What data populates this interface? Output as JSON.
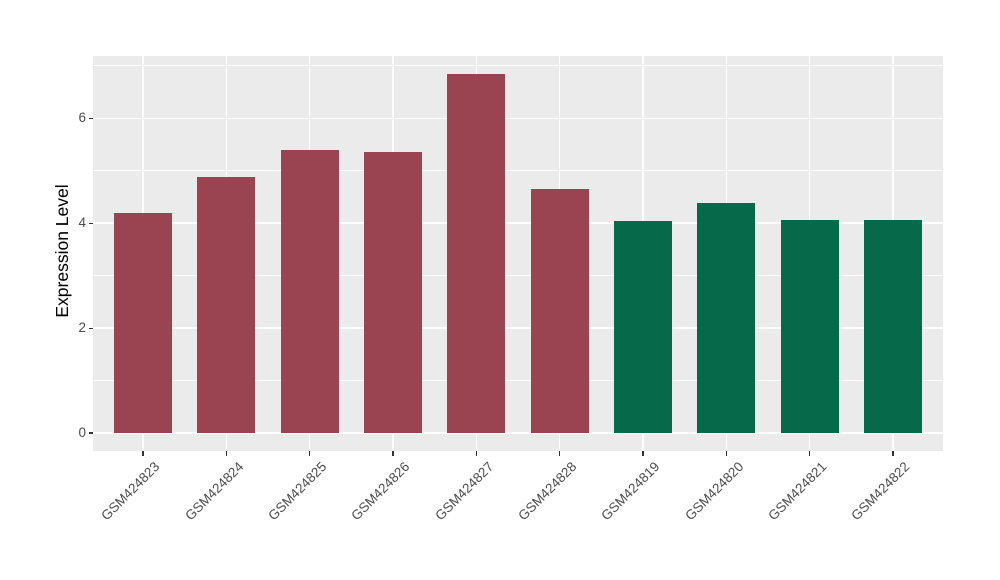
{
  "chart_data": {
    "type": "bar",
    "ylabel": "Expression Level",
    "categories": [
      "GSM424823",
      "GSM424824",
      "GSM424825",
      "GSM424826",
      "GSM424827",
      "GSM424828",
      "GSM424819",
      "GSM424820",
      "GSM424821",
      "GSM424822"
    ],
    "values": [
      4.2,
      4.88,
      5.39,
      5.36,
      6.84,
      4.66,
      4.05,
      4.38,
      4.06,
      4.06
    ],
    "bar_groups": [
      "maroon",
      "maroon",
      "maroon",
      "maroon",
      "maroon",
      "maroon",
      "green",
      "green",
      "green",
      "green"
    ],
    "group_colors": {
      "maroon": "#9A4452",
      "green": "#05694A"
    },
    "yticks": [
      0,
      2,
      4,
      6
    ],
    "yminor_gridlines": [
      1,
      3,
      5,
      7
    ],
    "ylim": [
      -0.34,
      7.18
    ],
    "x_tick_label_angle_deg": 45,
    "legend": "none",
    "grid": "on",
    "panel_bg": "#EBEBEB",
    "grid_color": "#FFFFFF",
    "axis_text_color": "#4D4D4D",
    "tick_mark_color": "#333333"
  }
}
